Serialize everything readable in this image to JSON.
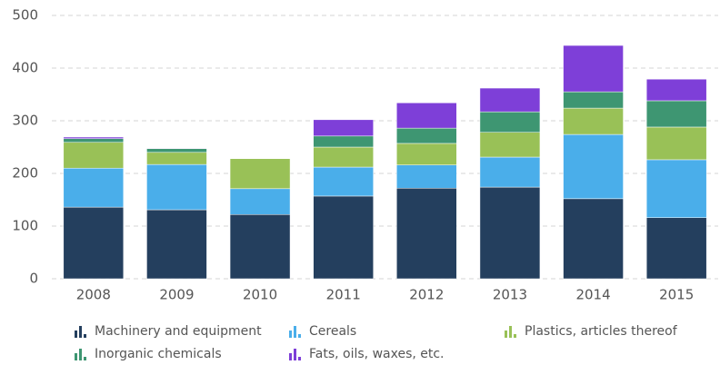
{
  "chart_data": {
    "type": "stacked_bar",
    "categories": [
      "2008",
      "2009",
      "2010",
      "2011",
      "2012",
      "2013",
      "2014",
      "2015"
    ],
    "series": [
      {
        "name": "Machinery and equipment",
        "color": "#243f5e",
        "values": [
          136,
          131,
          122,
          157,
          172,
          174,
          152,
          116
        ]
      },
      {
        "name": "Cereals",
        "color": "#4aaeea",
        "values": [
          74,
          86,
          49,
          55,
          44,
          57,
          122,
          110
        ]
      },
      {
        "name": "Plastics, articles thereof",
        "color": "#99c157",
        "values": [
          49,
          23,
          57,
          38,
          41,
          47,
          50,
          62
        ]
      },
      {
        "name": "Inorganic chemicals",
        "color": "#3e9672",
        "values": [
          7,
          7,
          0,
          21,
          29,
          39,
          31,
          50
        ]
      },
      {
        "name": "Fats, oils, waxes, etc.",
        "color": "#7e3fd8",
        "values": [
          3,
          1,
          0,
          31,
          48,
          45,
          88,
          41
        ]
      }
    ],
    "ylim": [
      0,
      500
    ],
    "yticks": [
      0,
      100,
      200,
      300,
      400,
      500
    ],
    "grid": true,
    "legend": "bottom"
  }
}
